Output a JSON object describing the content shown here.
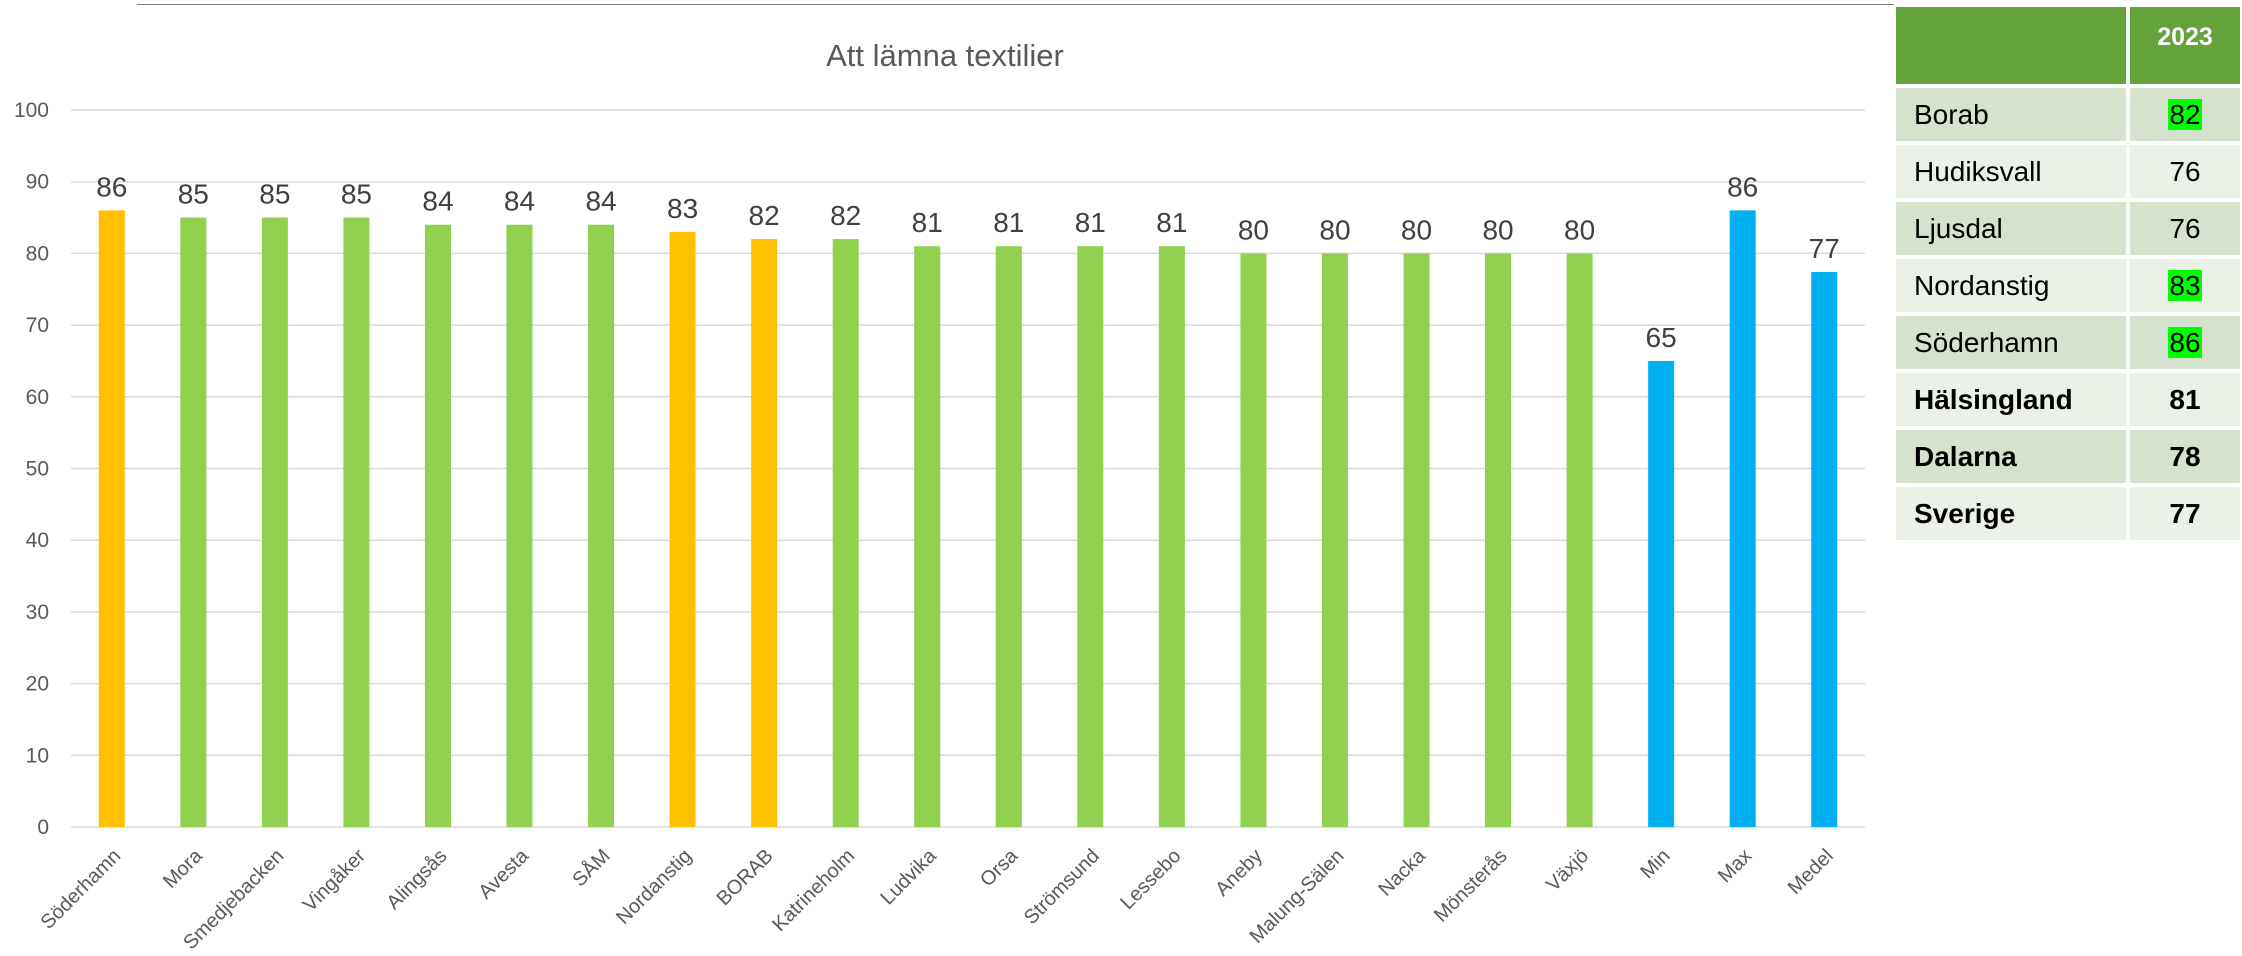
{
  "chart_data": {
    "type": "bar",
    "title": "Att lämna textilier",
    "xlabel": "",
    "ylabel": "",
    "ylim": [
      0,
      100
    ],
    "yticks": [
      0,
      10,
      20,
      30,
      40,
      50,
      60,
      70,
      80,
      90,
      100
    ],
    "grid": true,
    "legend": "none",
    "categories": [
      "Söderhamn",
      "Mora",
      "Smedjebacken",
      "Vingåker",
      "Alingsås",
      "Avesta",
      "SÅM",
      "Nordanstig",
      "BORAB",
      "Katrineholm",
      "Ludvika",
      "Orsa",
      "Strömsund",
      "Lessebo",
      "Aneby",
      "Malung-Sälen",
      "Nacka",
      "Mönsterås",
      "Växjö",
      "Min",
      "Max",
      "Medel"
    ],
    "values": [
      86,
      85,
      85,
      85,
      84,
      84,
      84,
      83,
      82,
      82,
      81,
      81,
      81,
      81,
      80,
      80,
      80,
      80,
      80,
      65,
      86,
      77.4
    ],
    "value_labels": [
      "86",
      "85",
      "85",
      "85",
      "84",
      "84",
      "84",
      "83",
      "82",
      "82",
      "81",
      "81",
      "81",
      "81",
      "80",
      "80",
      "80",
      "80",
      "80",
      "65",
      "86",
      "77"
    ],
    "bar_colors": [
      "#ffc000",
      "#92d050",
      "#92d050",
      "#92d050",
      "#92d050",
      "#92d050",
      "#92d050",
      "#ffc000",
      "#ffc000",
      "#92d050",
      "#92d050",
      "#92d050",
      "#92d050",
      "#92d050",
      "#92d050",
      "#92d050",
      "#92d050",
      "#92d050",
      "#92d050",
      "#00b0f0",
      "#00b0f0",
      "#00b0f0"
    ]
  },
  "side_table": {
    "header": {
      "name": "",
      "year": "2023"
    },
    "rows": [
      {
        "name": "Borab",
        "value": "82",
        "highlight": true,
        "bold": false
      },
      {
        "name": "Hudiksvall",
        "value": "76",
        "highlight": false,
        "bold": false
      },
      {
        "name": "Ljusdal",
        "value": "76",
        "highlight": false,
        "bold": false
      },
      {
        "name": "Nordanstig",
        "value": "83",
        "highlight": true,
        "bold": false
      },
      {
        "name": "Söderhamn",
        "value": "86",
        "highlight": true,
        "bold": false
      },
      {
        "name": "Hälsingland",
        "value": "81",
        "highlight": false,
        "bold": true
      },
      {
        "name": "Dalarna",
        "value": "78",
        "highlight": false,
        "bold": true
      },
      {
        "name": "Sverige",
        "value": "77",
        "highlight": false,
        "bold": true
      }
    ],
    "colors": {
      "header": "#64a23c",
      "row_even": "#d5e3ce",
      "row_odd": "#ebf1e7",
      "highlight": "#00ff00"
    }
  }
}
